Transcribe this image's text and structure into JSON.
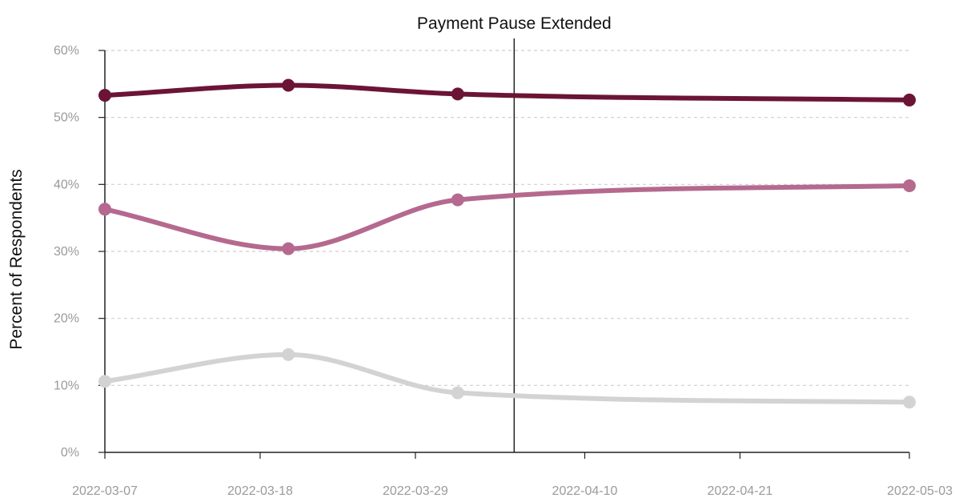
{
  "chart_data": {
    "type": "line",
    "title": "",
    "xlabel": "",
    "ylabel": "Percent of Respondents",
    "x_type": "date",
    "xlim": [
      "2022-03-07",
      "2022-05-03"
    ],
    "ylim": [
      0,
      60
    ],
    "x_ticks": [
      "2022-03-07",
      "2022-03-18",
      "2022-03-29",
      "2022-04-10",
      "2022-04-21",
      "2022-05-03"
    ],
    "y_ticks": [
      {
        "value": 0,
        "label": "0%"
      },
      {
        "value": 10,
        "label": "10%"
      },
      {
        "value": 20,
        "label": "20%"
      },
      {
        "value": 30,
        "label": "30%"
      },
      {
        "value": 40,
        "label": "40%"
      },
      {
        "value": 50,
        "label": "50%"
      },
      {
        "value": 60,
        "label": "60%"
      }
    ],
    "grid": {
      "horizontal": true,
      "style": "dashed"
    },
    "legend": "none",
    "annotations": [
      {
        "type": "vline",
        "x": "2022-04-05",
        "label": "Payment Pause Extended"
      }
    ],
    "series": [
      {
        "color": "#6b1436",
        "points": [
          {
            "x": "2022-03-07",
            "y": 53.3
          },
          {
            "x": "2022-03-20",
            "y": 54.8
          },
          {
            "x": "2022-04-01",
            "y": 53.5
          },
          {
            "x": "2022-05-03",
            "y": 52.6
          }
        ]
      },
      {
        "color": "#b5698f",
        "points": [
          {
            "x": "2022-03-07",
            "y": 36.3
          },
          {
            "x": "2022-03-20",
            "y": 30.4
          },
          {
            "x": "2022-04-01",
            "y": 37.7
          },
          {
            "x": "2022-05-03",
            "y": 39.8
          }
        ]
      },
      {
        "color": "#d3d3d3",
        "points": [
          {
            "x": "2022-03-07",
            "y": 10.6
          },
          {
            "x": "2022-03-20",
            "y": 14.6
          },
          {
            "x": "2022-04-01",
            "y": 8.9
          },
          {
            "x": "2022-05-03",
            "y": 7.5
          }
        ]
      }
    ]
  }
}
